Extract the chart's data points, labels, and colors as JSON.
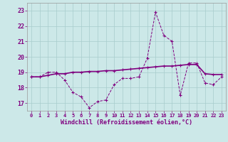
{
  "xlabel": "Windchill (Refroidissement éolien,°C)",
  "background_color": "#cce8e8",
  "line_color": "#800080",
  "grid_color": "#a8cccc",
  "xlim": [
    -0.5,
    23.5
  ],
  "ylim": [
    16.5,
    23.5
  ],
  "yticks": [
    17,
    18,
    19,
    20,
    21,
    22,
    23
  ],
  "xticks": [
    0,
    1,
    2,
    3,
    4,
    5,
    6,
    7,
    8,
    9,
    10,
    11,
    12,
    13,
    14,
    15,
    16,
    17,
    18,
    19,
    20,
    21,
    22,
    23
  ],
  "series1_x": [
    0,
    1,
    2,
    3,
    4,
    5,
    6,
    7,
    8,
    9,
    10,
    11,
    12,
    13,
    14,
    15,
    16,
    17,
    18,
    19,
    20,
    21,
    22,
    23
  ],
  "series1_y": [
    18.7,
    18.7,
    19.0,
    19.0,
    18.5,
    17.7,
    17.4,
    16.7,
    17.1,
    17.2,
    18.2,
    18.6,
    18.6,
    18.7,
    19.9,
    22.9,
    21.4,
    21.0,
    17.5,
    19.6,
    19.6,
    18.3,
    18.2,
    18.7
  ],
  "series2_x": [
    0,
    1,
    2,
    3,
    4,
    5,
    6,
    7,
    8,
    9,
    10,
    11,
    12,
    13,
    14,
    15,
    16,
    17,
    18,
    19,
    20,
    21,
    22,
    23
  ],
  "series2_y": [
    18.7,
    18.7,
    18.8,
    18.9,
    18.9,
    19.0,
    19.0,
    19.05,
    19.05,
    19.1,
    19.1,
    19.15,
    19.2,
    19.25,
    19.3,
    19.35,
    19.4,
    19.4,
    19.45,
    19.5,
    19.5,
    18.9,
    18.85,
    18.85
  ]
}
